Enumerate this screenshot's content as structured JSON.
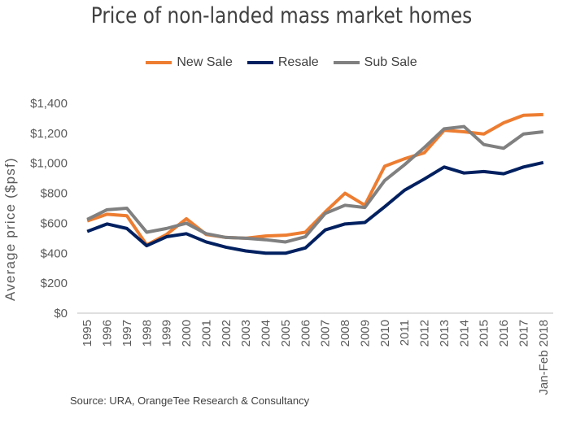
{
  "chart_data": {
    "type": "line",
    "title": "Price of non-landed mass market homes",
    "ylabel": "Average price ($psf)",
    "xlabel": "",
    "ylim": [
      0,
      1400
    ],
    "yticks": [
      0,
      200,
      400,
      600,
      800,
      1000,
      1200,
      1400
    ],
    "ytick_labels": [
      "$0",
      "$200",
      "$400",
      "$600",
      "$800",
      "$1,000",
      "$1,200",
      "$1,400"
    ],
    "categories": [
      "1995",
      "1996",
      "1997",
      "1998",
      "1999",
      "2000",
      "2001",
      "2002",
      "2003",
      "2004",
      "2005",
      "2006",
      "2007",
      "2008",
      "2009",
      "2010",
      "2011",
      "2012",
      "2013",
      "2014",
      "2015",
      "2016",
      "2017",
      "Jan-Feb 2018"
    ],
    "legend_position": "top-center",
    "grid": false,
    "series": [
      {
        "name": "New Sale",
        "color": "#ED7D31",
        "values": [
          615,
          660,
          650,
          455,
          525,
          630,
          525,
          505,
          500,
          515,
          520,
          540,
          675,
          800,
          720,
          980,
          1030,
          1070,
          1220,
          1210,
          1195,
          1270,
          1320,
          1325
        ]
      },
      {
        "name": "Resale",
        "color": "#002060",
        "values": [
          545,
          595,
          565,
          450,
          510,
          530,
          475,
          440,
          415,
          400,
          400,
          435,
          555,
          595,
          605,
          710,
          820,
          895,
          975,
          935,
          945,
          930,
          975,
          1005
        ]
      },
      {
        "name": "Sub Sale",
        "color": "#808080",
        "values": [
          625,
          690,
          700,
          540,
          565,
          600,
          530,
          505,
          500,
          490,
          475,
          510,
          665,
          720,
          705,
          885,
          990,
          1105,
          1230,
          1245,
          1125,
          1100,
          1195,
          1210
        ]
      }
    ]
  },
  "source": "Source: URA, OrangeTee Research & Consultancy"
}
